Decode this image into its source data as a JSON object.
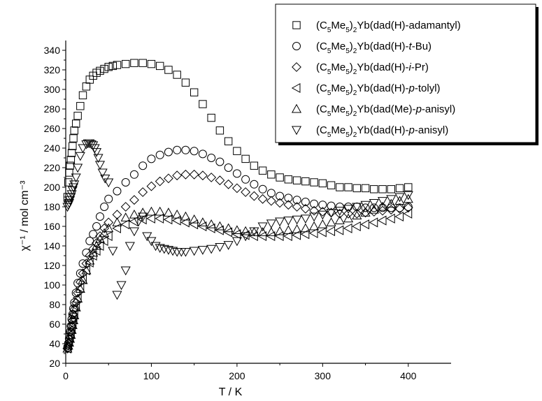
{
  "chart_data": {
    "type": "scatter",
    "xlabel": "T / K",
    "ylabel": "χ⁻¹ / mol cm⁻³",
    "xlim": [
      0,
      450
    ],
    "ylim": [
      20,
      350
    ],
    "xticks": [
      "0",
      "100",
      "200",
      "300",
      "400"
    ],
    "yticks": [
      "20",
      "40",
      "60",
      "80",
      "100",
      "120",
      "140",
      "160",
      "180",
      "200",
      "220",
      "240",
      "260",
      "280",
      "300",
      "320",
      "340"
    ],
    "grid": false,
    "legend_position": "top-right",
    "series": [
      {
        "name": "(C5Me5)2Yb(dad(H)-adamantyl)",
        "label_parts": [
          [
            "(C",
            "n"
          ],
          [
            "5",
            "sub"
          ],
          [
            "Me",
            "n"
          ],
          [
            "5",
            "sub"
          ],
          [
            ")",
            "n"
          ],
          [
            "2",
            "sub"
          ],
          [
            "Yb(dad(H)-adamantyl)",
            "n"
          ]
        ],
        "marker": "square",
        "x": [
          2,
          3,
          4,
          5,
          6,
          7,
          8,
          9,
          10,
          12,
          14,
          17,
          20,
          24,
          28,
          32,
          36,
          40,
          45,
          50,
          55,
          60,
          70,
          80,
          90,
          100,
          110,
          120,
          130,
          140,
          150,
          160,
          170,
          180,
          190,
          200,
          210,
          220,
          230,
          240,
          250,
          260,
          270,
          280,
          290,
          300,
          310,
          320,
          330,
          340,
          350,
          360,
          370,
          380,
          390,
          400
        ],
        "y": [
          190,
          205,
          215,
          222,
          228,
          235,
          242,
          250,
          258,
          265,
          273,
          283,
          294,
          303,
          310,
          314,
          317,
          319,
          321,
          323,
          324,
          325,
          326,
          327,
          327,
          326,
          324,
          320,
          315,
          307,
          297,
          285,
          271,
          258,
          247,
          237,
          229,
          222,
          217,
          213,
          210,
          208,
          207,
          206,
          205,
          204,
          202,
          200,
          200,
          199,
          199,
          198,
          198,
          198,
          199,
          200
        ]
      },
      {
        "name": "(C5Me5)2Yb(dad(H)-t-Bu)",
        "label_parts": [
          [
            "(C",
            "n"
          ],
          [
            "5",
            "sub"
          ],
          [
            "Me",
            "n"
          ],
          [
            "5",
            "sub"
          ],
          [
            ")",
            "n"
          ],
          [
            "2",
            "sub"
          ],
          [
            "Yb(dad(H)-",
            "n"
          ],
          [
            "t",
            "i"
          ],
          [
            "-Bu)",
            "n"
          ]
        ],
        "marker": "circle",
        "x": [
          2,
          3,
          4,
          5,
          6,
          7,
          8,
          9,
          10,
          12,
          14,
          17,
          20,
          24,
          28,
          32,
          36,
          40,
          45,
          50,
          60,
          70,
          80,
          90,
          100,
          110,
          120,
          130,
          140,
          150,
          160,
          170,
          180,
          190,
          200,
          210,
          220,
          230,
          240,
          250,
          260,
          270,
          280,
          290,
          300,
          310,
          320,
          330,
          340,
          350,
          360,
          370,
          380,
          390,
          400
        ],
        "y": [
          36,
          40,
          45,
          52,
          58,
          65,
          70,
          76,
          82,
          92,
          102,
          112,
          122,
          133,
          145,
          152,
          160,
          170,
          180,
          188,
          196,
          205,
          213,
          222,
          229,
          233,
          236,
          238,
          238,
          237,
          234,
          230,
          226,
          220,
          214,
          208,
          203,
          198,
          194,
          191,
          189,
          187,
          185,
          183,
          182,
          181,
          180,
          180,
          180,
          179,
          179,
          179,
          179,
          179,
          180
        ]
      },
      {
        "name": "(C5Me5)2Yb(dad(H)-i-Pr)",
        "label_parts": [
          [
            "(C",
            "n"
          ],
          [
            "5",
            "sub"
          ],
          [
            "Me",
            "n"
          ],
          [
            "5",
            "sub"
          ],
          [
            ")",
            "n"
          ],
          [
            "2",
            "sub"
          ],
          [
            "Yb(dad(H)-",
            "n"
          ],
          [
            "i",
            "i"
          ],
          [
            "-Pr)",
            "n"
          ]
        ],
        "marker": "diamond",
        "x": [
          2,
          3,
          4,
          5,
          6,
          7,
          8,
          9,
          10,
          12,
          14,
          17,
          20,
          24,
          28,
          32,
          36,
          40,
          45,
          50,
          60,
          70,
          80,
          90,
          100,
          110,
          120,
          130,
          140,
          150,
          160,
          170,
          180,
          190,
          200,
          210,
          220,
          230,
          240,
          250,
          260,
          270,
          280,
          290,
          300,
          310,
          320,
          330,
          340,
          350,
          360,
          370,
          380,
          390,
          400
        ],
        "y": [
          35,
          38,
          42,
          47,
          52,
          58,
          64,
          70,
          75,
          82,
          92,
          103,
          112,
          122,
          130,
          137,
          143,
          150,
          158,
          164,
          172,
          180,
          187,
          195,
          201,
          206,
          209,
          212,
          213,
          213,
          212,
          210,
          207,
          203,
          199,
          195,
          191,
          188,
          186,
          184,
          182,
          180,
          178,
          176,
          175,
          174,
          173,
          173,
          173,
          174,
          175,
          176,
          177,
          178,
          179
        ]
      },
      {
        "name": "(C5Me5)2Yb(dad(H)-p-tolyl)",
        "label_parts": [
          [
            "(C",
            "n"
          ],
          [
            "5",
            "sub"
          ],
          [
            "Me",
            "n"
          ],
          [
            "5",
            "sub"
          ],
          [
            ")",
            "n"
          ],
          [
            "2",
            "sub"
          ],
          [
            "Yb(dad(H)-",
            "n"
          ],
          [
            "p",
            "i"
          ],
          [
            "-tolyl)",
            "n"
          ]
        ],
        "marker": "tri-left",
        "x": [
          2,
          3,
          4,
          5,
          6,
          7,
          8,
          9,
          10,
          12,
          14,
          17,
          20,
          24,
          28,
          32,
          36,
          40,
          45,
          50,
          60,
          70,
          80,
          90,
          100,
          110,
          120,
          130,
          140,
          150,
          160,
          170,
          180,
          190,
          200,
          210,
          220,
          230,
          240,
          250,
          260,
          270,
          280,
          290,
          300,
          310,
          320,
          330,
          340,
          350,
          360,
          370,
          380,
          390,
          400
        ],
        "y": [
          35,
          38,
          42,
          46,
          50,
          55,
          60,
          65,
          70,
          78,
          87,
          97,
          106,
          115,
          123,
          130,
          135,
          140,
          145,
          150,
          158,
          162,
          165,
          167,
          168,
          168,
          167,
          166,
          164,
          162,
          160,
          158,
          156,
          154,
          152,
          151,
          150,
          150,
          150,
          150,
          150,
          151,
          152,
          153,
          154,
          155,
          156,
          158,
          160,
          162,
          164,
          166,
          168,
          170,
          173
        ]
      },
      {
        "name": "(C5Me5)2Yb(dad(Me)-p-anisyl)",
        "label_parts": [
          [
            "(C",
            "n"
          ],
          [
            "5",
            "sub"
          ],
          [
            "Me",
            "n"
          ],
          [
            "5",
            "sub"
          ],
          [
            ")",
            "n"
          ],
          [
            "2",
            "sub"
          ],
          [
            "Yb(dad(Me)-",
            "n"
          ],
          [
            "p",
            "i"
          ],
          [
            "-anisyl)",
            "n"
          ]
        ],
        "marker": "tri-up",
        "x": [
          2,
          3,
          4,
          5,
          6,
          7,
          8,
          9,
          10,
          12,
          14,
          17,
          20,
          24,
          28,
          32,
          36,
          40,
          45,
          50,
          60,
          70,
          80,
          90,
          100,
          110,
          120,
          130,
          140,
          150,
          160,
          170,
          180,
          190,
          200,
          210,
          220,
          230,
          240,
          250,
          260,
          270,
          280,
          290,
          300,
          310,
          320,
          330,
          340,
          350,
          360,
          370,
          380,
          390,
          400
        ],
        "y": [
          35,
          38,
          41,
          45,
          49,
          54,
          59,
          64,
          69,
          77,
          86,
          96,
          105,
          115,
          125,
          133,
          140,
          147,
          153,
          158,
          164,
          169,
          172,
          174,
          175,
          175,
          174,
          172,
          170,
          167,
          164,
          162,
          160,
          158,
          156,
          155,
          154,
          154,
          154,
          155,
          156,
          157,
          158,
          160,
          162,
          164,
          166,
          168,
          171,
          174,
          177,
          180,
          183,
          186,
          188
        ]
      },
      {
        "name": "(C5Me5)2Yb(dad(H)-p-anisyl)",
        "label_parts": [
          [
            "(C",
            "n"
          ],
          [
            "5",
            "sub"
          ],
          [
            "Me",
            "n"
          ],
          [
            "5",
            "sub"
          ],
          [
            ")",
            "n"
          ],
          [
            "2",
            "sub"
          ],
          [
            "Yb(dad(H)-",
            "n"
          ],
          [
            "p",
            "i"
          ],
          [
            "-anisyl)",
            "n"
          ]
        ],
        "marker": "tri-down",
        "x": [
          2,
          3,
          4,
          5,
          6,
          7,
          8,
          9,
          10,
          12,
          14,
          17,
          20,
          24,
          26,
          28,
          30,
          32,
          34,
          36,
          38,
          40,
          43,
          46,
          50,
          55,
          60,
          65,
          70,
          75,
          80,
          85,
          90,
          95,
          100,
          105,
          110,
          115,
          120,
          125,
          130,
          135,
          140,
          150,
          160,
          170,
          180,
          190,
          200,
          210,
          220,
          230,
          240,
          250,
          260,
          270,
          280,
          290,
          300,
          310,
          320,
          330,
          340,
          350,
          360,
          370,
          380,
          390,
          400
        ],
        "y": [
          180,
          182,
          184,
          187,
          190,
          193,
          197,
          200,
          203,
          210,
          220,
          232,
          240,
          244,
          245,
          245,
          244,
          243,
          240,
          236,
          230,
          223,
          215,
          209,
          205,
          135,
          90,
          100,
          115,
          140,
          155,
          165,
          170,
          150,
          145,
          140,
          138,
          137,
          136,
          135,
          134,
          134,
          134,
          135,
          136,
          137,
          139,
          141,
          145,
          150,
          155,
          160,
          163,
          165,
          166,
          167,
          168,
          170,
          172,
          174,
          176,
          178,
          180,
          182,
          184,
          186,
          188,
          190,
          192
        ]
      }
    ]
  }
}
